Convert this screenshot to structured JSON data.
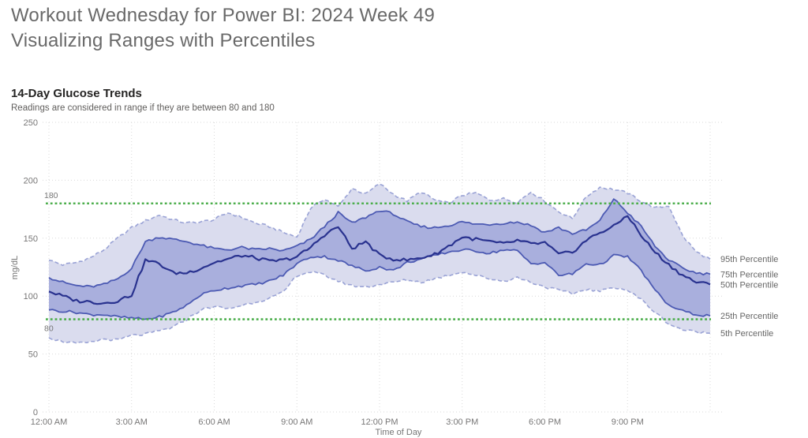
{
  "page": {
    "title_line1": "Workout Wednesday for Power BI: 2024 Week 49",
    "title_line2": "Visualizing Ranges with Percentiles"
  },
  "chart": {
    "subtitle": "Readings are considered in range if they are between 80 and 180",
    "colors": {
      "outer_band_fill": "#dadcee",
      "outer_band_stroke": "#99a2d5",
      "inner_band_fill": "#a9afdd",
      "inner_band_stroke": "#4c5ab3",
      "median_stroke": "#29328f",
      "reference_line": "#4cae4c",
      "gridline": "#d9d9d9",
      "tick_text": "#777676"
    }
  },
  "chart_data": {
    "type": "area",
    "title": "14-Day Glucose Trends",
    "xlabel": "Time of Day",
    "ylabel": "mg/dL",
    "ylim": [
      0,
      250
    ],
    "y_ticks": [
      0,
      50,
      100,
      150,
      200,
      250
    ],
    "x_hours": [
      0,
      0.5,
      1,
      1.5,
      2,
      2.5,
      3,
      3.5,
      4,
      4.5,
      5,
      5.5,
      6,
      6.5,
      7,
      7.5,
      8,
      8.5,
      9,
      9.5,
      10,
      10.5,
      11,
      11.5,
      12,
      12.5,
      13,
      13.5,
      14,
      14.5,
      15,
      15.5,
      16,
      16.5,
      17,
      17.5,
      18,
      18.5,
      19,
      19.5,
      20,
      20.5,
      21,
      21.5,
      22,
      22.5,
      23,
      23.5,
      24
    ],
    "x_tick_hours": [
      0,
      3,
      6,
      9,
      12,
      15,
      18,
      21
    ],
    "x_tick_labels": [
      "12:00 AM",
      "3:00 AM",
      "6:00 AM",
      "9:00 AM",
      "12:00 PM",
      "3:00 PM",
      "6:00 PM",
      "9:00 PM"
    ],
    "grid": true,
    "legend_position": "right-edge-labels",
    "ref_lines": [
      {
        "value": 180,
        "label": "180"
      },
      {
        "value": 80,
        "label": "80"
      }
    ],
    "bands": [
      {
        "lower": "5th Percentile",
        "upper": "95th Percentile",
        "style": "outer-dashed"
      },
      {
        "lower": "25th Percentile",
        "upper": "75th Percentile",
        "style": "inner-solid"
      }
    ],
    "series": [
      {
        "name": "95th Percentile",
        "values": [
          131,
          127,
          129,
          133,
          140,
          150,
          159,
          165,
          170,
          166,
          163,
          164,
          166,
          172,
          168,
          163,
          160,
          155,
          151,
          176,
          184,
          177,
          193,
          188,
          197,
          188,
          182,
          190,
          183,
          180,
          187,
          189,
          183,
          184,
          181,
          190,
          182,
          173,
          167,
          186,
          194,
          192,
          189,
          182,
          176,
          178,
          152,
          138,
          132
        ]
      },
      {
        "name": "75th Percentile",
        "values": [
          116,
          112,
          109,
          108,
          110,
          115,
          124,
          147,
          151,
          149,
          147,
          144,
          141,
          140,
          142,
          140,
          141,
          139,
          143,
          149,
          160,
          172,
          163,
          168,
          174,
          171,
          164,
          160,
          159,
          161,
          164,
          162,
          162,
          163,
          164,
          161,
          155,
          159,
          154,
          157,
          165,
          184,
          172,
          160,
          143,
          131,
          124,
          120,
          119
        ]
      },
      {
        "name": "50th Percentile",
        "values": [
          104,
          100,
          96,
          95,
          94,
          96,
          101,
          131,
          128,
          120,
          120,
          124,
          129,
          132,
          135,
          133,
          130,
          131,
          134,
          142,
          153,
          160,
          141,
          147,
          135,
          132,
          131,
          133,
          136,
          143,
          151,
          149,
          147,
          145,
          148,
          145,
          146,
          136,
          138,
          148,
          155,
          160,
          170,
          152,
          138,
          127,
          118,
          112,
          110
        ]
      },
      {
        "name": "25th Percentile",
        "values": [
          88,
          87,
          86,
          84,
          84,
          82,
          81,
          80,
          82,
          86,
          92,
          101,
          105,
          107,
          109,
          110,
          113,
          118,
          128,
          134,
          134,
          131,
          126,
          122,
          125,
          122,
          129,
          132,
          135,
          138,
          140,
          139,
          137,
          140,
          139,
          128,
          129,
          118,
          119,
          128,
          127,
          135,
          134,
          122,
          105,
          92,
          87,
          84,
          83
        ]
      },
      {
        "name": "5th Percentile",
        "values": [
          64,
          61,
          59,
          60,
          63,
          62,
          66,
          67,
          70,
          73,
          80,
          88,
          91,
          89,
          92,
          95,
          98,
          103,
          118,
          121,
          118,
          113,
          109,
          108,
          110,
          112,
          114,
          112,
          115,
          118,
          121,
          118,
          115,
          113,
          116,
          112,
          108,
          105,
          102,
          106,
          104,
          108,
          105,
          97,
          86,
          76,
          71,
          69,
          68
        ]
      }
    ]
  }
}
